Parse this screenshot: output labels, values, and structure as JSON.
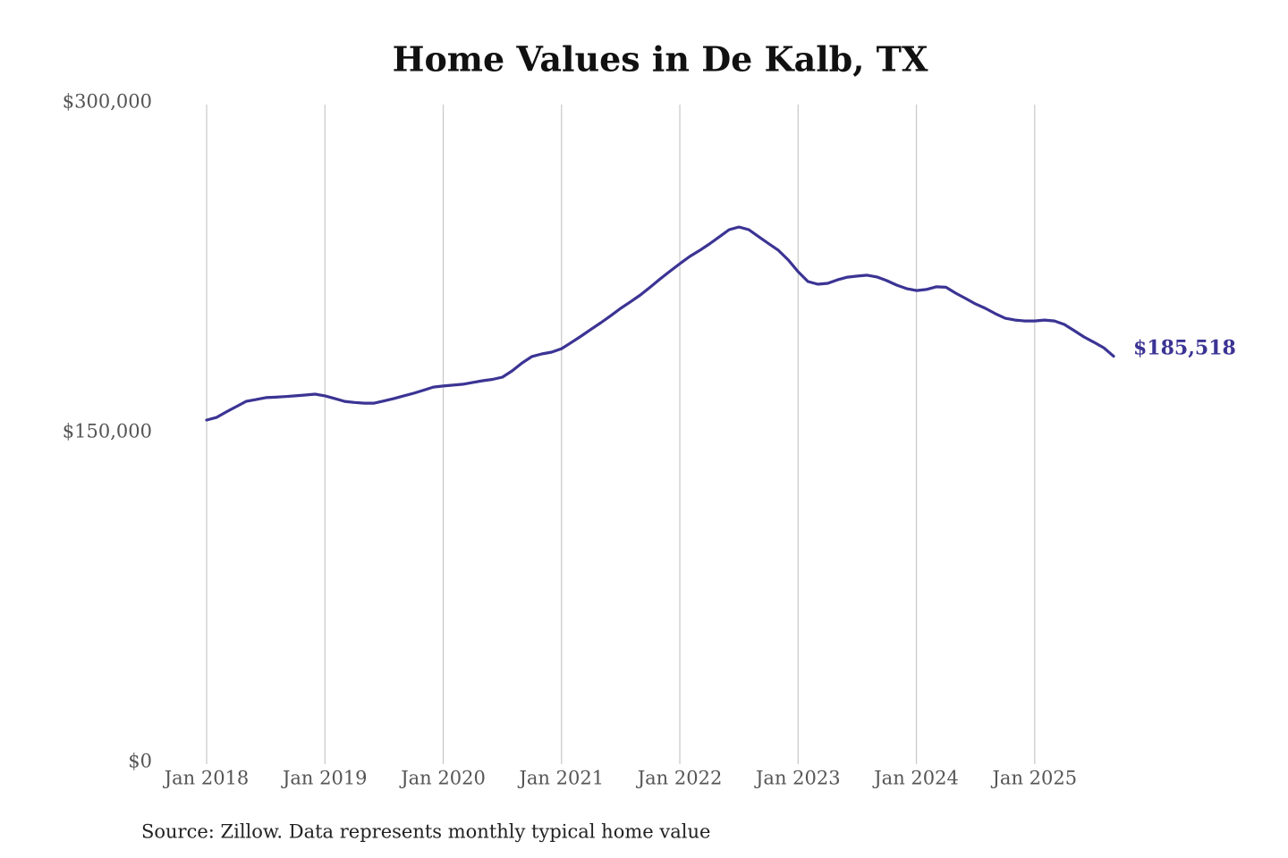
{
  "chart_data": {
    "type": "line",
    "title": "Home Values in De Kalb, TX",
    "source": "Source: Zillow. Data represents monthly typical home value",
    "x": [
      "2018-01",
      "2018-02",
      "2018-03",
      "2018-04",
      "2018-05",
      "2018-06",
      "2018-07",
      "2018-08",
      "2018-09",
      "2018-10",
      "2018-11",
      "2018-12",
      "2019-01",
      "2019-02",
      "2019-03",
      "2019-04",
      "2019-05",
      "2019-06",
      "2019-07",
      "2019-08",
      "2019-09",
      "2019-10",
      "2019-11",
      "2019-12",
      "2020-01",
      "2020-02",
      "2020-03",
      "2020-04",
      "2020-05",
      "2020-06",
      "2020-07",
      "2020-08",
      "2020-09",
      "2020-10",
      "2020-11",
      "2020-12",
      "2021-01",
      "2021-02",
      "2021-03",
      "2021-04",
      "2021-05",
      "2021-06",
      "2021-07",
      "2021-08",
      "2021-09",
      "2021-10",
      "2021-11",
      "2021-12",
      "2022-01",
      "2022-02",
      "2022-03",
      "2022-04",
      "2022-05",
      "2022-06",
      "2022-07",
      "2022-08",
      "2022-09",
      "2022-10",
      "2022-11",
      "2022-12",
      "2023-01",
      "2023-02",
      "2023-03",
      "2023-04",
      "2023-05",
      "2023-06",
      "2023-07",
      "2023-08",
      "2023-09",
      "2023-10",
      "2023-11",
      "2023-12",
      "2024-01",
      "2024-02",
      "2024-03",
      "2024-04",
      "2024-05",
      "2024-06",
      "2024-07",
      "2024-08",
      "2024-09",
      "2024-10",
      "2024-11",
      "2024-12",
      "2025-01",
      "2025-02",
      "2025-03",
      "2025-04",
      "2025-05",
      "2025-06",
      "2025-07",
      "2025-08",
      "2025-09"
    ],
    "series": [
      {
        "name": "De Kalb, TX",
        "color": "#3b3494",
        "values": [
          156500,
          157700,
          160200,
          162600,
          165000,
          165800,
          166700,
          166900,
          167200,
          167500,
          167900,
          168300,
          167500,
          166300,
          165000,
          164500,
          164200,
          164200,
          165200,
          166300,
          167500,
          168700,
          170100,
          171500,
          172000,
          172400,
          172800,
          173600,
          174400,
          175000,
          176000,
          178900,
          182500,
          185400,
          186600,
          187400,
          189000,
          191800,
          194700,
          197800,
          200800,
          204000,
          207300,
          210300,
          213400,
          217000,
          220700,
          224200,
          227600,
          230900,
          233600,
          236600,
          239800,
          243100,
          244300,
          243100,
          239900,
          236800,
          233700,
          229300,
          224000,
          219500,
          218300,
          218700,
          220300,
          221500,
          222000,
          222400,
          221600,
          219900,
          217900,
          216300,
          215400,
          215900,
          217100,
          216900,
          214200,
          211800,
          209300,
          207300,
          204900,
          202800,
          202000,
          201600,
          201600,
          202000,
          201600,
          200000,
          197200,
          194300,
          191900,
          189400,
          185518
        ]
      }
    ],
    "last_value_label": "$185,518",
    "xlim": [
      "2018-01",
      "2025-09"
    ],
    "xticks": [
      {
        "value": "2018-01",
        "label": "Jan 2018"
      },
      {
        "value": "2019-01",
        "label": "Jan 2019"
      },
      {
        "value": "2020-01",
        "label": "Jan 2020"
      },
      {
        "value": "2021-01",
        "label": "Jan 2021"
      },
      {
        "value": "2022-01",
        "label": "Jan 2022"
      },
      {
        "value": "2023-01",
        "label": "Jan 2023"
      },
      {
        "value": "2024-01",
        "label": "Jan 2024"
      },
      {
        "value": "2025-01",
        "label": "Jan 2025"
      }
    ],
    "ylim": [
      0,
      300000
    ],
    "yticks": [
      {
        "value": 0,
        "label": "$0"
      },
      {
        "value": 150000,
        "label": "$150,000"
      },
      {
        "value": 300000,
        "label": "$300,000"
      }
    ],
    "grid": "x"
  }
}
